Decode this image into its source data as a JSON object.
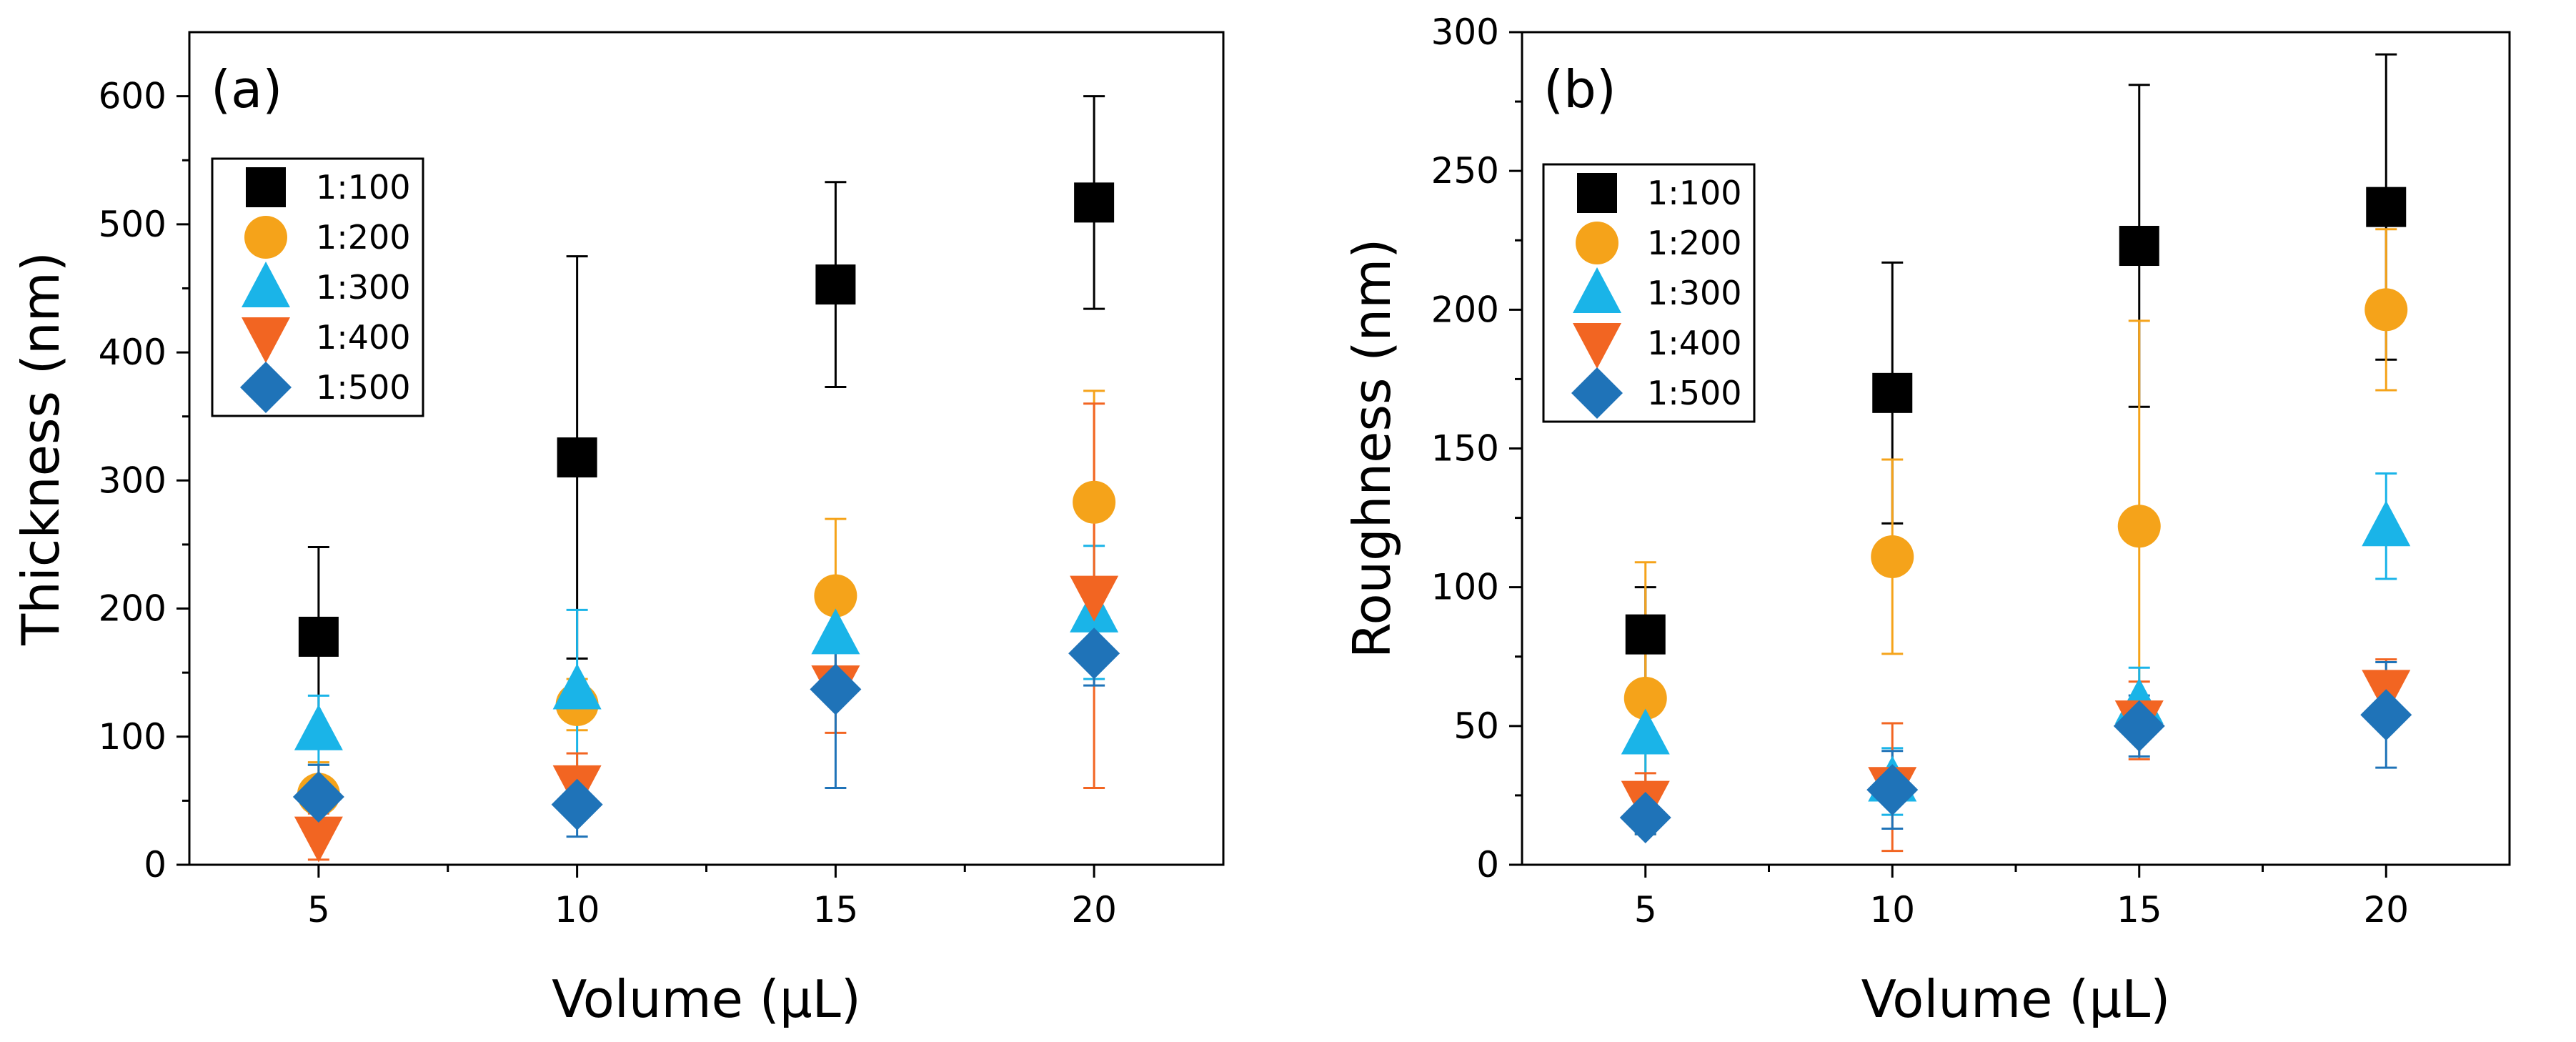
{
  "chart_data": [
    {
      "type": "scatter",
      "panel_label": "(a)",
      "title": "",
      "xlabel": "Volume (μL)",
      "ylabel": "Thickness (nm)",
      "xlim": [
        2.5,
        22.5
      ],
      "ylim": [
        0,
        650
      ],
      "xticks": [
        5,
        10,
        15,
        20
      ],
      "xtick_labels": [
        "5",
        "10",
        "15",
        "20"
      ],
      "yticks": [
        0,
        100,
        200,
        300,
        400,
        500,
        600
      ],
      "ytick_labels": [
        "0",
        "100",
        "200",
        "300",
        "400",
        "500",
        "600"
      ],
      "legend_position": "top-left",
      "error_bars": "symmetric (value ± error)",
      "x": [
        5,
        10,
        15,
        20
      ],
      "series": [
        {
          "name": "1:100",
          "marker": "square",
          "color": "#000000",
          "values": [
            178,
            318,
            453,
            517
          ],
          "errors": [
            70,
            157,
            80,
            83
          ]
        },
        {
          "name": "1:200",
          "marker": "circle",
          "color": "#F5A31A",
          "values": [
            55,
            125,
            210,
            283
          ],
          "errors": [
            25,
            20,
            60,
            87
          ]
        },
        {
          "name": "1:300",
          "marker": "triangle-up",
          "color": "#1AB4E8",
          "values": [
            105,
            137,
            180,
            197
          ],
          "errors": [
            27,
            62,
            35,
            52
          ]
        },
        {
          "name": "1:400",
          "marker": "triangle-down",
          "color": "#F26522",
          "values": [
            22,
            62,
            140,
            210
          ],
          "errors": [
            18,
            25,
            37,
            150
          ]
        },
        {
          "name": "1:500",
          "marker": "diamond",
          "color": "#1F73B8",
          "values": [
            53,
            47,
            137,
            165
          ],
          "errors": [
            25,
            25,
            77,
            25
          ]
        }
      ]
    },
    {
      "type": "scatter",
      "panel_label": "(b)",
      "title": "",
      "xlabel": "Volume (μL)",
      "ylabel": "Roughness (nm)",
      "xlim": [
        2.5,
        22.5
      ],
      "ylim": [
        0,
        300
      ],
      "xticks": [
        5,
        10,
        15,
        20
      ],
      "xtick_labels": [
        "5",
        "10",
        "15",
        "20"
      ],
      "yticks": [
        0,
        50,
        100,
        150,
        200,
        250,
        300
      ],
      "ytick_labels": [
        "0",
        "50",
        "100",
        "150",
        "200",
        "250",
        "300"
      ],
      "legend_position": "top-left",
      "error_bars": "symmetric (value ± error)",
      "x": [
        5,
        10,
        15,
        20
      ],
      "series": [
        {
          "name": "1:100",
          "marker": "square",
          "color": "#000000",
          "values": [
            83,
            170,
            223,
            237
          ],
          "errors": [
            17,
            47,
            58,
            55
          ]
        },
        {
          "name": "1:200",
          "marker": "circle",
          "color": "#F5A31A",
          "values": [
            60,
            111,
            122,
            200
          ],
          "errors": [
            49,
            35,
            74,
            29
          ]
        },
        {
          "name": "1:300",
          "marker": "triangle-up",
          "color": "#1AB4E8",
          "values": [
            47,
            30,
            58,
            122
          ],
          "errors": [
            18,
            12,
            13,
            19
          ]
        },
        {
          "name": "1:400",
          "marker": "triangle-down",
          "color": "#F26522",
          "values": [
            23,
            28,
            52,
            63
          ],
          "errors": [
            10,
            23,
            14,
            11
          ]
        },
        {
          "name": "1:500",
          "marker": "diamond",
          "color": "#1F73B8",
          "values": [
            17,
            27,
            50,
            54
          ],
          "errors": [
            6,
            14,
            11,
            19
          ]
        }
      ]
    }
  ]
}
